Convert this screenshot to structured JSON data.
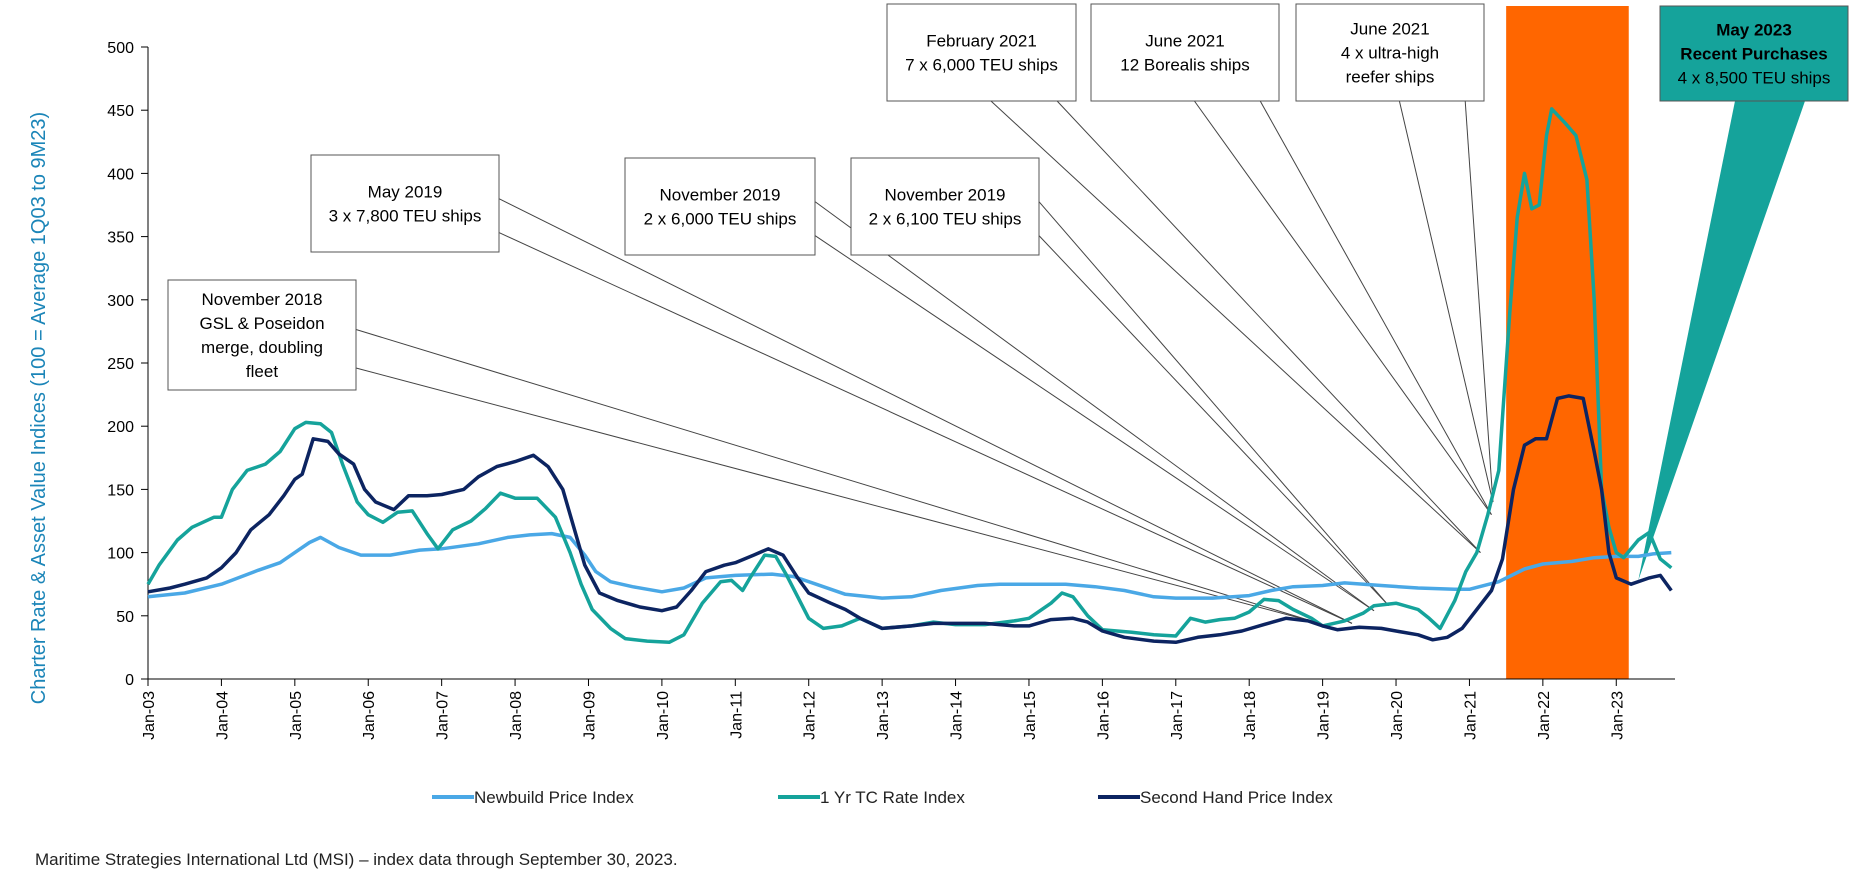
{
  "footnote": "Maritime Strategies International Ltd (MSI) – index data through September 30, 2023.",
  "chart_data": {
    "type": "line",
    "ylabel": "Charter Rate & Asset Value Indices (100 = Average 1Q03 to 9M23)",
    "xlabel": "",
    "ylim": [
      0,
      500
    ],
    "xlim": [
      2003.0,
      2023.8
    ],
    "y_ticks": [
      0,
      50,
      100,
      150,
      200,
      250,
      300,
      350,
      400,
      450,
      500
    ],
    "x_ticks": [
      {
        "label": "Jan-03",
        "x": 2003
      },
      {
        "label": "Jan-04",
        "x": 2004
      },
      {
        "label": "Jan-05",
        "x": 2005
      },
      {
        "label": "Jan-06",
        "x": 2006
      },
      {
        "label": "Jan-07",
        "x": 2007
      },
      {
        "label": "Jan-08",
        "x": 2008
      },
      {
        "label": "Jan-09",
        "x": 2009
      },
      {
        "label": "Jan-10",
        "x": 2010
      },
      {
        "label": "Jan-11",
        "x": 2011
      },
      {
        "label": "Jan-12",
        "x": 2012
      },
      {
        "label": "Jan-13",
        "x": 2013
      },
      {
        "label": "Jan-14",
        "x": 2014
      },
      {
        "label": "Jan-15",
        "x": 2015
      },
      {
        "label": "Jan-16",
        "x": 2016
      },
      {
        "label": "Jan-17",
        "x": 2017
      },
      {
        "label": "Jan-18",
        "x": 2018
      },
      {
        "label": "Jan-19",
        "x": 2019
      },
      {
        "label": "Jan-20",
        "x": 2020
      },
      {
        "label": "Jan-21",
        "x": 2021
      },
      {
        "label": "Jan-22",
        "x": 2022
      },
      {
        "label": "Jan-23",
        "x": 2023
      }
    ],
    "legend_position": "bottom",
    "series": [
      {
        "name": "Newbuild Price Index",
        "color": "#4aa8e6",
        "points": [
          [
            2003.0,
            65
          ],
          [
            2003.5,
            68
          ],
          [
            2004.0,
            75
          ],
          [
            2004.5,
            86
          ],
          [
            2004.8,
            92
          ],
          [
            2005.0,
            100
          ],
          [
            2005.2,
            108
          ],
          [
            2005.35,
            112
          ],
          [
            2005.6,
            104
          ],
          [
            2005.9,
            98
          ],
          [
            2006.3,
            98
          ],
          [
            2006.7,
            102
          ],
          [
            2007.0,
            103
          ],
          [
            2007.5,
            107
          ],
          [
            2007.9,
            112
          ],
          [
            2008.2,
            114
          ],
          [
            2008.5,
            115
          ],
          [
            2008.75,
            112
          ],
          [
            2008.95,
            98
          ],
          [
            2009.1,
            85
          ],
          [
            2009.3,
            77
          ],
          [
            2009.6,
            73
          ],
          [
            2010.0,
            69
          ],
          [
            2010.3,
            72
          ],
          [
            2010.6,
            80
          ],
          [
            2011.0,
            82
          ],
          [
            2011.5,
            83
          ],
          [
            2011.8,
            81
          ],
          [
            2012.1,
            75
          ],
          [
            2012.5,
            67
          ],
          [
            2013.0,
            64
          ],
          [
            2013.4,
            65
          ],
          [
            2013.8,
            70
          ],
          [
            2014.3,
            74
          ],
          [
            2014.6,
            75
          ],
          [
            2015.0,
            75
          ],
          [
            2015.5,
            75
          ],
          [
            2015.9,
            73
          ],
          [
            2016.3,
            70
          ],
          [
            2016.7,
            65
          ],
          [
            2017.0,
            64
          ],
          [
            2017.5,
            64
          ],
          [
            2018.0,
            66
          ],
          [
            2018.3,
            70
          ],
          [
            2018.6,
            73
          ],
          [
            2019.0,
            74
          ],
          [
            2019.3,
            76
          ],
          [
            2019.8,
            74
          ],
          [
            2020.3,
            72
          ],
          [
            2020.8,
            71
          ],
          [
            2021.0,
            71
          ],
          [
            2021.4,
            77
          ],
          [
            2021.75,
            87
          ],
          [
            2022.0,
            91
          ],
          [
            2022.4,
            93
          ],
          [
            2022.7,
            96
          ],
          [
            2023.0,
            97
          ],
          [
            2023.3,
            97
          ],
          [
            2023.5,
            99
          ],
          [
            2023.75,
            100
          ]
        ]
      },
      {
        "name": "1 Yr TC Rate Index",
        "color": "#15a39b",
        "points": [
          [
            2003.0,
            75
          ],
          [
            2003.15,
            90
          ],
          [
            2003.4,
            110
          ],
          [
            2003.6,
            120
          ],
          [
            2003.9,
            128
          ],
          [
            2004.0,
            128
          ],
          [
            2004.15,
            150
          ],
          [
            2004.35,
            165
          ],
          [
            2004.6,
            170
          ],
          [
            2004.8,
            180
          ],
          [
            2005.0,
            198
          ],
          [
            2005.15,
            203
          ],
          [
            2005.35,
            202
          ],
          [
            2005.5,
            195
          ],
          [
            2005.65,
            170
          ],
          [
            2005.85,
            140
          ],
          [
            2006.0,
            130
          ],
          [
            2006.2,
            124
          ],
          [
            2006.4,
            132
          ],
          [
            2006.6,
            133
          ],
          [
            2006.8,
            115
          ],
          [
            2006.95,
            103
          ],
          [
            2007.15,
            118
          ],
          [
            2007.4,
            125
          ],
          [
            2007.6,
            135
          ],
          [
            2007.8,
            147
          ],
          [
            2008.0,
            143
          ],
          [
            2008.3,
            143
          ],
          [
            2008.55,
            128
          ],
          [
            2008.75,
            100
          ],
          [
            2008.9,
            75
          ],
          [
            2009.05,
            55
          ],
          [
            2009.3,
            40
          ],
          [
            2009.5,
            32
          ],
          [
            2009.8,
            30
          ],
          [
            2010.1,
            29
          ],
          [
            2010.3,
            35
          ],
          [
            2010.55,
            60
          ],
          [
            2010.8,
            77
          ],
          [
            2010.95,
            78
          ],
          [
            2011.1,
            70
          ],
          [
            2011.2,
            80
          ],
          [
            2011.4,
            98
          ],
          [
            2011.55,
            97
          ],
          [
            2011.7,
            82
          ],
          [
            2011.85,
            65
          ],
          [
            2012.0,
            48
          ],
          [
            2012.2,
            40
          ],
          [
            2012.45,
            42
          ],
          [
            2012.7,
            48
          ],
          [
            2013.0,
            40
          ],
          [
            2013.4,
            42
          ],
          [
            2013.7,
            45
          ],
          [
            2014.0,
            43
          ],
          [
            2014.4,
            43
          ],
          [
            2014.8,
            46
          ],
          [
            2015.0,
            48
          ],
          [
            2015.3,
            60
          ],
          [
            2015.45,
            68
          ],
          [
            2015.6,
            65
          ],
          [
            2015.8,
            50
          ],
          [
            2016.0,
            39
          ],
          [
            2016.4,
            37
          ],
          [
            2016.7,
            35
          ],
          [
            2017.0,
            34
          ],
          [
            2017.2,
            48
          ],
          [
            2017.4,
            45
          ],
          [
            2017.6,
            47
          ],
          [
            2017.8,
            48
          ],
          [
            2018.0,
            53
          ],
          [
            2018.2,
            63
          ],
          [
            2018.4,
            62
          ],
          [
            2018.6,
            55
          ],
          [
            2018.85,
            48
          ],
          [
            2019.0,
            42
          ],
          [
            2019.3,
            46
          ],
          [
            2019.55,
            52
          ],
          [
            2019.7,
            58
          ],
          [
            2020.0,
            60
          ],
          [
            2020.3,
            55
          ],
          [
            2020.45,
            48
          ],
          [
            2020.6,
            40
          ],
          [
            2020.8,
            62
          ],
          [
            2020.95,
            85
          ],
          [
            2021.1,
            100
          ],
          [
            2021.25,
            130
          ],
          [
            2021.4,
            165
          ],
          [
            2021.55,
            290
          ],
          [
            2021.65,
            365
          ],
          [
            2021.75,
            400
          ],
          [
            2021.85,
            372
          ],
          [
            2021.95,
            375
          ],
          [
            2022.05,
            430
          ],
          [
            2022.12,
            451
          ],
          [
            2022.3,
            440
          ],
          [
            2022.45,
            430
          ],
          [
            2022.6,
            395
          ],
          [
            2022.7,
            300
          ],
          [
            2022.8,
            150
          ],
          [
            2022.9,
            120
          ],
          [
            2023.0,
            100
          ],
          [
            2023.1,
            96
          ],
          [
            2023.3,
            110
          ],
          [
            2023.45,
            116
          ],
          [
            2023.6,
            95
          ],
          [
            2023.75,
            88
          ]
        ]
      },
      {
        "name": "Second Hand Price Index",
        "color": "#0c2461",
        "points": [
          [
            2003.0,
            69
          ],
          [
            2003.3,
            72
          ],
          [
            2003.5,
            75
          ],
          [
            2003.8,
            80
          ],
          [
            2004.0,
            88
          ],
          [
            2004.2,
            100
          ],
          [
            2004.4,
            118
          ],
          [
            2004.65,
            130
          ],
          [
            2004.85,
            145
          ],
          [
            2005.0,
            158
          ],
          [
            2005.1,
            162
          ],
          [
            2005.25,
            190
          ],
          [
            2005.45,
            188
          ],
          [
            2005.6,
            178
          ],
          [
            2005.8,
            170
          ],
          [
            2005.95,
            150
          ],
          [
            2006.1,
            140
          ],
          [
            2006.35,
            134
          ],
          [
            2006.55,
            145
          ],
          [
            2006.8,
            145
          ],
          [
            2007.0,
            146
          ],
          [
            2007.3,
            150
          ],
          [
            2007.5,
            160
          ],
          [
            2007.75,
            168
          ],
          [
            2008.0,
            172
          ],
          [
            2008.25,
            177
          ],
          [
            2008.45,
            168
          ],
          [
            2008.65,
            150
          ],
          [
            2008.8,
            120
          ],
          [
            2008.95,
            90
          ],
          [
            2009.15,
            68
          ],
          [
            2009.4,
            62
          ],
          [
            2009.7,
            57
          ],
          [
            2010.0,
            54
          ],
          [
            2010.2,
            57
          ],
          [
            2010.4,
            70
          ],
          [
            2010.6,
            85
          ],
          [
            2010.85,
            90
          ],
          [
            2011.0,
            92
          ],
          [
            2011.25,
            98
          ],
          [
            2011.45,
            103
          ],
          [
            2011.65,
            98
          ],
          [
            2011.85,
            80
          ],
          [
            2012.0,
            68
          ],
          [
            2012.3,
            60
          ],
          [
            2012.5,
            55
          ],
          [
            2012.7,
            48
          ],
          [
            2013.0,
            40
          ],
          [
            2013.4,
            42
          ],
          [
            2013.7,
            44
          ],
          [
            2014.0,
            44
          ],
          [
            2014.4,
            44
          ],
          [
            2014.8,
            42
          ],
          [
            2015.0,
            42
          ],
          [
            2015.3,
            47
          ],
          [
            2015.6,
            48
          ],
          [
            2015.8,
            45
          ],
          [
            2016.0,
            38
          ],
          [
            2016.3,
            33
          ],
          [
            2016.7,
            30
          ],
          [
            2017.0,
            29
          ],
          [
            2017.3,
            33
          ],
          [
            2017.6,
            35
          ],
          [
            2017.9,
            38
          ],
          [
            2018.2,
            43
          ],
          [
            2018.5,
            48
          ],
          [
            2018.8,
            46
          ],
          [
            2019.0,
            42
          ],
          [
            2019.2,
            39
          ],
          [
            2019.5,
            41
          ],
          [
            2019.8,
            40
          ],
          [
            2020.0,
            38
          ],
          [
            2020.3,
            35
          ],
          [
            2020.5,
            31
          ],
          [
            2020.7,
            33
          ],
          [
            2020.9,
            40
          ],
          [
            2021.1,
            55
          ],
          [
            2021.3,
            70
          ],
          [
            2021.45,
            95
          ],
          [
            2021.6,
            150
          ],
          [
            2021.75,
            185
          ],
          [
            2021.9,
            190
          ],
          [
            2022.05,
            190
          ],
          [
            2022.2,
            222
          ],
          [
            2022.35,
            224
          ],
          [
            2022.55,
            222
          ],
          [
            2022.7,
            180
          ],
          [
            2022.8,
            150
          ],
          [
            2022.9,
            100
          ],
          [
            2023.0,
            80
          ],
          [
            2023.2,
            75
          ],
          [
            2023.45,
            80
          ],
          [
            2023.6,
            82
          ],
          [
            2023.75,
            70
          ]
        ]
      }
    ],
    "highlight_region": {
      "x_start": 2021.5,
      "x_end": 2023.17,
      "color": "#ff6600"
    },
    "annotations": [
      {
        "lines": [
          "November 2018",
          "GSL & Poseidon",
          "merge, doubling",
          "fleet"
        ],
        "target_x": 2018.9,
        "target_y": 45,
        "style": "box"
      },
      {
        "lines": [
          "May 2019",
          "3 x 7,800 TEU ships"
        ],
        "target_x": 2019.4,
        "target_y": 44,
        "style": "box"
      },
      {
        "lines": [
          "November 2019",
          "2 x 6,000 TEU ships"
        ],
        "target_x": 2019.7,
        "target_y": 54,
        "style": "box"
      },
      {
        "lines": [
          "November 2019",
          "2 x 6,100 TEU ships"
        ],
        "target_x": 2019.9,
        "target_y": 58,
        "style": "box"
      },
      {
        "lines": [
          "February 2021",
          "7 x 6,000 TEU ships"
        ],
        "target_x": 2021.15,
        "target_y": 100,
        "style": "box"
      },
      {
        "lines": [
          "June 2021",
          "12 Borealis ships"
        ],
        "target_x": 2021.3,
        "target_y": 130,
        "style": "box"
      },
      {
        "lines": [
          "June 2021",
          "4 x ultra-high",
          "reefer ships"
        ],
        "target_x": 2021.32,
        "target_y": 140,
        "style": "box"
      },
      {
        "lines": [
          "May 2023",
          "Recent Purchases",
          "4 x 8,500 TEU ships"
        ],
        "bold_lines": 2,
        "target_x": 2023.3,
        "target_y": 78,
        "style": "filled",
        "color": "#15a39b"
      }
    ]
  }
}
